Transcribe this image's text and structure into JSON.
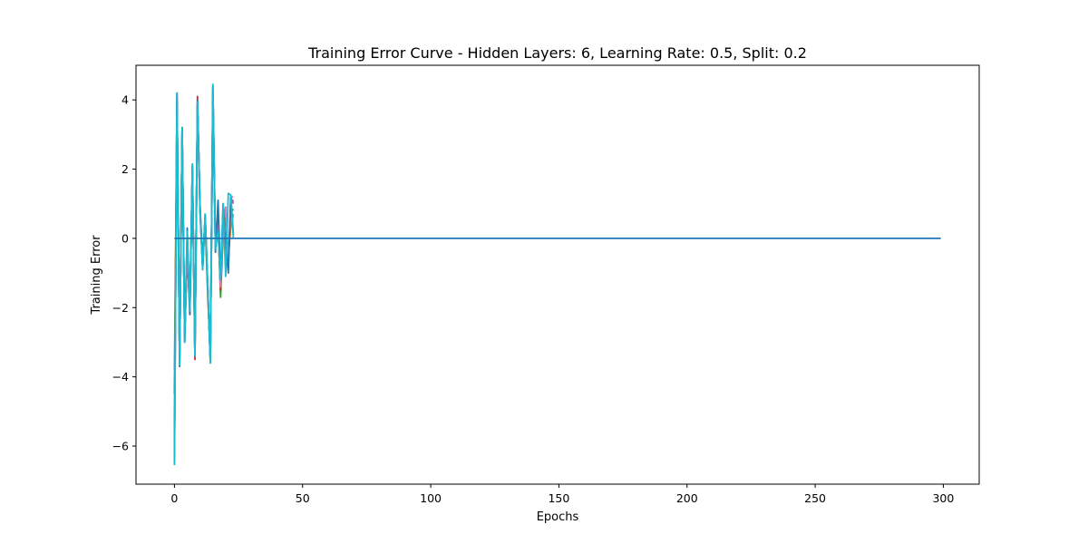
{
  "chart_data": {
    "type": "line",
    "title": "Training Error Curve - Hidden Layers: 6, Learning Rate: 0.5, Split: 0.2",
    "xlabel": "Epochs",
    "ylabel": "Training Error",
    "xlim": [
      -15,
      314
    ],
    "ylim": [
      -7.1,
      5.0
    ],
    "xticks": [
      0,
      50,
      100,
      150,
      200,
      250,
      300
    ],
    "yticks": [
      -6,
      -4,
      -2,
      0,
      2,
      4
    ],
    "xtick_labels": [
      "0",
      "50",
      "100",
      "150",
      "200",
      "250",
      "300"
    ],
    "ytick_labels": [
      "−6",
      "−4",
      "−2",
      "0",
      "2",
      "4"
    ],
    "grid": false,
    "legend": "none",
    "series": [
      {
        "color": "#ff7f0e",
        "x": [
          0,
          1,
          2,
          3,
          4,
          5,
          6,
          7,
          8,
          9,
          10,
          11,
          12,
          13,
          14,
          15,
          16,
          17,
          18,
          19,
          20,
          21,
          22,
          23
        ],
        "y": [
          -3.8,
          3.9,
          -3.3,
          2.9,
          -2.7,
          -0.3,
          -1.9,
          1.9,
          -3.2,
          3.8,
          0.9,
          -0.6,
          0.5,
          -1.7,
          -3.3,
          4.0,
          -0.2,
          0.4,
          -1.1,
          0.2,
          0.6,
          -0.5,
          0.3,
          0.7
        ]
      },
      {
        "color": "#2ca02c",
        "x": [
          0,
          1,
          2,
          3,
          4,
          5,
          6,
          7,
          8,
          9,
          10,
          11,
          12,
          13,
          14,
          15,
          16,
          17,
          18,
          19,
          20,
          21,
          22,
          23
        ],
        "y": [
          -4.5,
          4.0,
          -3.5,
          3.1,
          -2.8,
          -0.5,
          -2.0,
          2.0,
          -3.3,
          3.9,
          0.8,
          -0.7,
          0.6,
          -1.5,
          -3.4,
          4.2,
          -0.3,
          0.5,
          -1.7,
          0.1,
          0.7,
          -0.6,
          0.9,
          0.8
        ]
      },
      {
        "color": "#d62728",
        "x": [
          0,
          1,
          2,
          3,
          4,
          5,
          6,
          7,
          8,
          9,
          10,
          11,
          12,
          13,
          14,
          15,
          16,
          17,
          18,
          19,
          20,
          21,
          22,
          23
        ],
        "y": [
          -5.5,
          4.1,
          -3.6,
          3.2,
          -2.9,
          -0.4,
          -2.2,
          2.1,
          -3.5,
          4.1,
          0.7,
          -0.8,
          0.6,
          -1.4,
          -3.5,
          4.3,
          -0.1,
          0.3,
          -1.5,
          0.3,
          0.9,
          -0.8,
          1.0,
          1.1
        ]
      },
      {
        "color": "#9467bd",
        "x": [
          0,
          1,
          2,
          3,
          4,
          5,
          6,
          7,
          8,
          9,
          10,
          11,
          12,
          13,
          14,
          15,
          16,
          17,
          18,
          19,
          20,
          21,
          22,
          23
        ],
        "y": [
          -6.0,
          4.1,
          -3.6,
          3.1,
          -2.9,
          -0.3,
          -2.1,
          2.0,
          -3.4,
          3.9,
          0.8,
          -0.8,
          0.6,
          -1.4,
          -3.5,
          4.3,
          -0.2,
          0.4,
          -1.3,
          0.5,
          0.8,
          -0.7,
          1.2,
          1.0
        ]
      },
      {
        "color": "#e377c2",
        "x": [
          0,
          1,
          2,
          3,
          4,
          5,
          6,
          7,
          8,
          9,
          10,
          11,
          12,
          13,
          14,
          15,
          16,
          17,
          18,
          19,
          20,
          21,
          22,
          23
        ],
        "y": [
          -6.3,
          4.2,
          -3.6,
          3.2,
          -3.0,
          -0.2,
          -2.0,
          2.1,
          -3.4,
          3.8,
          0.9,
          -0.9,
          0.6,
          -1.5,
          -3.5,
          4.4,
          -0.3,
          0.4,
          -1.4,
          0.4,
          0.9,
          -0.9,
          1.2,
          1.2
        ]
      },
      {
        "color": "#1f77b4",
        "x": [
          0,
          1,
          2,
          3,
          4,
          5,
          6,
          7,
          8,
          9,
          10,
          11,
          12,
          13,
          14,
          15,
          16,
          17,
          18,
          19,
          20,
          21,
          22,
          23
        ],
        "y": [
          -6.5,
          4.2,
          -3.7,
          3.2,
          -3.0,
          0.3,
          -2.2,
          2.1,
          -3.4,
          4.0,
          0.9,
          -0.9,
          0.7,
          -1.4,
          -3.6,
          4.4,
          -0.4,
          1.1,
          -1.2,
          1.0,
          -0.2,
          -1.0,
          1.2,
          0.1
        ]
      },
      {
        "color": "#17becf",
        "x": [
          0,
          1,
          2,
          3,
          4,
          5,
          6,
          7,
          8,
          9,
          10,
          11,
          12,
          13,
          14,
          15,
          16,
          17,
          18,
          19,
          20,
          21,
          22,
          23
        ],
        "y": [
          -6.55,
          4.2,
          -3.65,
          3.2,
          -3.0,
          0.2,
          -2.1,
          2.15,
          -3.4,
          3.95,
          0.8,
          -0.9,
          0.7,
          -1.3,
          -3.6,
          4.45,
          -0.3,
          0.2,
          -1.2,
          1.0,
          -1.1,
          1.3,
          1.25,
          0.0
        ]
      },
      {
        "color": "#1f77b4",
        "x": [
          0,
          299
        ],
        "y": [
          0,
          0
        ]
      }
    ]
  }
}
